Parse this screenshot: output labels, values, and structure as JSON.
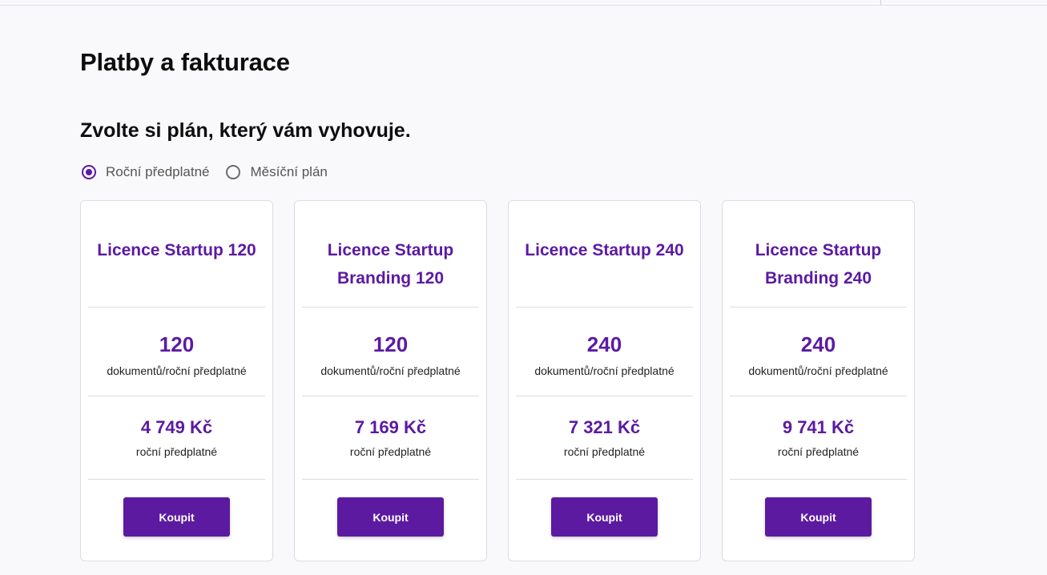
{
  "page": {
    "title": "Platby a fakturace",
    "section_title": "Zvolte si plán, který vám vyhovuje."
  },
  "billing_toggle": {
    "options": [
      {
        "label": "Roční předplatné",
        "selected": true
      },
      {
        "label": "Měsíční plán",
        "selected": false
      }
    ]
  },
  "plans": [
    {
      "name": "Licence Startup 120",
      "documents": "120",
      "documents_label": "dokumentů/roční předplatné",
      "price": "4 749 Kč",
      "price_label": "roční předplatné",
      "button_label": "Koupit"
    },
    {
      "name": "Licence Startup Branding 120",
      "documents": "120",
      "documents_label": "dokumentů/roční předplatné",
      "price": "7 169 Kč",
      "price_label": "roční předplatné",
      "button_label": "Koupit"
    },
    {
      "name": "Licence Startup 240",
      "documents": "240",
      "documents_label": "dokumentů/roční předplatné",
      "price": "7 321 Kč",
      "price_label": "roční předplatné",
      "button_label": "Koupit"
    },
    {
      "name": "Licence Startup Branding 240",
      "documents": "240",
      "documents_label": "dokumentů/roční předplatné",
      "price": "9 741 Kč",
      "price_label": "roční předplatné",
      "button_label": "Koupit"
    }
  ],
  "colors": {
    "accent": "#5c1aa1",
    "background": "#f9f9fb",
    "card_border": "#dcdde3"
  }
}
